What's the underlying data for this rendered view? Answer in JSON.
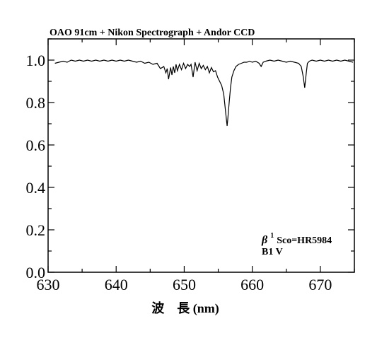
{
  "chart_data": {
    "type": "line",
    "title": "OAO 91cm + Nikon Spectrograph + Andor CCD",
    "xlabel": "波　長 (nm)",
    "ylabel": "",
    "xlim": [
      630,
      675
    ],
    "ylim": [
      0.0,
      1.1
    ],
    "xticks": [
      630,
      640,
      650,
      660,
      670
    ],
    "yticks": [
      0.0,
      0.2,
      0.4,
      0.6,
      0.8,
      1.0
    ],
    "xtick_labels": [
      "630",
      "640",
      "650",
      "660",
      "670"
    ],
    "ytick_labels": [
      "0.0",
      "0.2",
      "0.4",
      "0.6",
      "0.8",
      "1.0"
    ],
    "grid": false,
    "annotation": {
      "star_symbol": "β",
      "star_superscript": "1",
      "star_name": "Sco=HR5984",
      "spectral_type": "B1 V"
    },
    "series": [
      {
        "x": [
          631.0,
          631.6,
          632.2,
          632.8,
          633.4,
          634.0,
          634.6,
          635.2,
          635.8,
          636.4,
          637.0,
          637.6,
          638.2,
          638.8,
          639.4,
          640.0,
          640.6,
          641.2,
          641.8,
          642.4,
          643.0,
          643.6,
          644.2,
          644.8,
          645.4,
          646.0,
          646.5,
          647.0,
          647.3,
          647.5,
          647.7,
          648.0,
          648.2,
          648.4,
          648.6,
          648.8,
          649.0,
          649.3,
          649.6,
          649.9,
          650.2,
          650.5,
          650.8,
          651.0,
          651.3,
          651.6,
          651.9,
          652.2,
          652.5,
          652.8,
          653.1,
          653.4,
          653.7,
          654.0,
          654.3,
          654.6,
          654.9,
          655.2,
          655.5,
          655.8,
          656.0,
          656.2,
          656.3,
          656.4,
          656.6,
          656.8,
          657.0,
          657.3,
          657.6,
          658.0,
          658.4,
          658.8,
          659.2,
          659.6,
          660.0,
          660.5,
          661.0,
          661.3,
          661.6,
          662.0,
          662.6,
          663.2,
          663.8,
          664.4,
          665.0,
          665.6,
          666.2,
          666.8,
          667.2,
          667.5,
          667.7,
          667.9,
          668.1,
          668.4,
          668.8,
          669.4,
          670.0,
          670.6,
          671.2,
          671.8,
          672.4,
          673.0,
          673.6,
          674.2,
          674.8
        ],
        "y": [
          0.985,
          0.99,
          0.995,
          0.99,
          1.0,
          0.995,
          1.0,
          0.995,
          1.0,
          0.995,
          1.0,
          0.995,
          1.0,
          0.995,
          1.0,
          0.995,
          1.0,
          0.995,
          1.0,
          0.995,
          0.99,
          0.995,
          0.985,
          0.99,
          0.98,
          0.985,
          0.96,
          0.97,
          0.94,
          0.96,
          0.91,
          0.965,
          0.93,
          0.97,
          0.94,
          0.98,
          0.95,
          0.98,
          0.955,
          0.985,
          0.96,
          0.98,
          0.97,
          0.98,
          0.92,
          0.99,
          0.95,
          0.985,
          0.96,
          0.975,
          0.955,
          0.97,
          0.94,
          0.965,
          0.945,
          0.95,
          0.92,
          0.9,
          0.88,
          0.84,
          0.78,
          0.72,
          0.69,
          0.72,
          0.8,
          0.87,
          0.92,
          0.95,
          0.97,
          0.98,
          0.985,
          0.99,
          0.99,
          0.995,
          0.99,
          0.995,
          0.985,
          0.97,
          0.99,
          0.995,
          1.0,
          0.995,
          1.0,
          0.995,
          0.99,
          0.995,
          0.99,
          0.985,
          0.97,
          0.92,
          0.87,
          0.93,
          0.985,
          0.995,
          1.0,
          0.995,
          1.0,
          0.995,
          1.0,
          0.995,
          1.0,
          0.995,
          1.0,
          0.995,
          0.99
        ]
      }
    ]
  }
}
